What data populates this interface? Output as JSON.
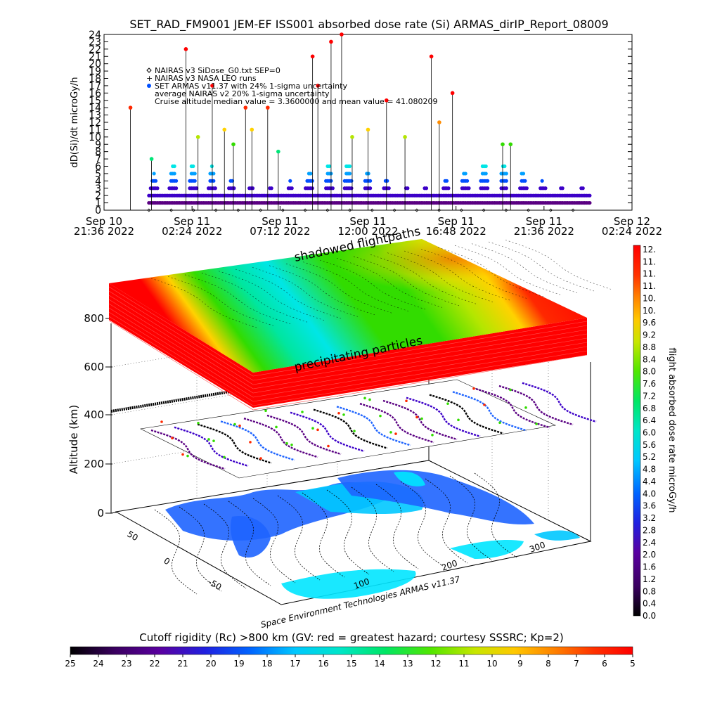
{
  "title": "SET_RAD_FM9001  JEM-EF ISS001 absorbed dose rate (Si) ARMAS_dirIP_Report_08009",
  "time_series": {
    "ylabel": "dD(Si)/dt microGy/h",
    "y_ticks": [
      "0",
      "1",
      "2",
      "3",
      "4",
      "5",
      "6",
      "7",
      "8",
      "9",
      "10",
      "11",
      "12",
      "13",
      "14",
      "15",
      "16",
      "17",
      "18",
      "19",
      "20",
      "21",
      "22",
      "23",
      "24"
    ],
    "x_ticks": [
      {
        "day": "Sep 10",
        "time": "21:36 2022"
      },
      {
        "day": "Sep 11",
        "time": "02:24 2022"
      },
      {
        "day": "Sep 11",
        "time": "07:12 2022"
      },
      {
        "day": "Sep 11",
        "time": "12:00 2022"
      },
      {
        "day": "Sep 11",
        "time": "16:48 2022"
      },
      {
        "day": "Sep 11",
        "time": "21:36 2022"
      },
      {
        "day": "Sep 12",
        "time": "02:24 2022"
      }
    ],
    "legend": [
      {
        "marker": "diamond",
        "text": "NAIRAS v3 SiDose_G0.txt SEP=0"
      },
      {
        "marker": "plus",
        "text": "NAIRAS v3 NASA LEO runs"
      },
      {
        "marker": "dot",
        "text": "SET ARMAS v11.37 with 24% 1-sigma uncertainty"
      },
      {
        "marker": "none",
        "text": "average NAIRAS v2 20% 1-sigma uncertainty"
      },
      {
        "marker": "none",
        "text": "Cruise altitude median value = 3.3600000 and mean value = 41.080209"
      }
    ]
  },
  "three_d": {
    "zlabel": "Altitude (km)",
    "z_ticks": [
      "0",
      "200",
      "400",
      "600",
      "800"
    ],
    "lat_ticks": [
      "-50",
      "0",
      "50"
    ],
    "lon_ticks": [
      "100",
      "200",
      "300"
    ],
    "upper_label": "shadowed flightpaths",
    "lower_label": "precipitating particles",
    "credit": "Space Environment Technologies ARMAS v11.37"
  },
  "right_colorbar": {
    "label": "flight absorbed dose rate microGy/h",
    "ticks": [
      "0.0",
      "0.4",
      "0.8",
      "1.2",
      "1.6",
      "2.0",
      "2.4",
      "2.8",
      "3.2",
      "3.6",
      "4.0",
      "4.4",
      "4.8",
      "5.2",
      "5.6",
      "6.0",
      "6.4",
      "6.8",
      "7.2",
      "7.6",
      "8.0",
      "8.4",
      "8.8",
      "9.2",
      "9.6",
      "10.",
      "10.",
      "11.",
      "11.",
      "11.",
      "12."
    ]
  },
  "bottom_colorbar": {
    "label": "Cutoff rigidity (Rc) >800 km (GV: red = greatest hazard; courtesy SSSRC; Kp=2)",
    "ticks": [
      "25",
      "24",
      "23",
      "22",
      "21",
      "20",
      "19",
      "18",
      "17",
      "16",
      "15",
      "14",
      "13",
      "12",
      "11",
      "10",
      "9",
      "8",
      "7",
      "6",
      "5"
    ]
  },
  "colors": {
    "rainbow": [
      "#000000",
      "#5a0082",
      "#3c00c8",
      "#0050ff",
      "#00a0ff",
      "#00e6e6",
      "#00e678",
      "#32dc00",
      "#b4e600",
      "#ffd200",
      "#ff8c00",
      "#ff2800",
      "#ff0000"
    ]
  },
  "chart_data": {
    "type": "scatter",
    "title": "SET_RAD_FM9001  JEM-EF ISS001 absorbed dose rate (Si) ARMAS_dirIP_Report_08009",
    "ylabel": "dD(Si)/dt microGy/h",
    "xlabel": "",
    "ylim": [
      0,
      24
    ],
    "xlim": [
      "Sep 10 21:36 2022",
      "Sep 12 02:24 2022"
    ],
    "x_tick_labels": [
      "Sep 10 21:36 2022",
      "Sep 11 02:24 2022",
      "Sep 11 07:12 2022",
      "Sep 11 12:00 2022",
      "Sep 11 16:48 2022",
      "Sep 11 21:36 2022",
      "Sep 12 02:24 2022"
    ],
    "series": [
      {
        "name": "NAIRAS v3 SiDose_G0.txt SEP=0",
        "marker": "diamond",
        "values": [
          0,
          1,
          1,
          1,
          0,
          1,
          1,
          1,
          0,
          1,
          1,
          1,
          0,
          1,
          1,
          1,
          0,
          1,
          1,
          1,
          0,
          1,
          1,
          1,
          0,
          1,
          1,
          1,
          0,
          1,
          1,
          1,
          0,
          1,
          1,
          1,
          0,
          1,
          1,
          1,
          0,
          1,
          1,
          1,
          0,
          1,
          1,
          1,
          0,
          1,
          1,
          1,
          0,
          1,
          1,
          1,
          0,
          1,
          1,
          1,
          0,
          1,
          1,
          1,
          0,
          1,
          1,
          1,
          0,
          1,
          1,
          1,
          0,
          1,
          1,
          1,
          0,
          1,
          1,
          1
        ]
      },
      {
        "name": "SET ARMAS v11.37 with 24% 1-sigma uncertainty",
        "marker": "dot",
        "spikes": [
          {
            "t": 0.05,
            "v": 14
          },
          {
            "t": 0.09,
            "v": 7
          },
          {
            "t": 0.155,
            "v": 22
          },
          {
            "t": 0.178,
            "v": 10
          },
          {
            "t": 0.205,
            "v": 17
          },
          {
            "t": 0.228,
            "v": 11
          },
          {
            "t": 0.245,
            "v": 9
          },
          {
            "t": 0.268,
            "v": 14
          },
          {
            "t": 0.28,
            "v": 11
          },
          {
            "t": 0.31,
            "v": 14
          },
          {
            "t": 0.33,
            "v": 8
          },
          {
            "t": 0.395,
            "v": 21
          },
          {
            "t": 0.405,
            "v": 17
          },
          {
            "t": 0.43,
            "v": 23
          },
          {
            "t": 0.45,
            "v": 24
          },
          {
            "t": 0.47,
            "v": 10
          },
          {
            "t": 0.5,
            "v": 11
          },
          {
            "t": 0.535,
            "v": 15
          },
          {
            "t": 0.57,
            "v": 10
          },
          {
            "t": 0.62,
            "v": 21
          },
          {
            "t": 0.635,
            "v": 12
          },
          {
            "t": 0.66,
            "v": 16
          },
          {
            "t": 0.755,
            "v": 9
          },
          {
            "t": 0.77,
            "v": 9
          }
        ],
        "baseline_range": [
          1,
          6
        ]
      }
    ]
  }
}
